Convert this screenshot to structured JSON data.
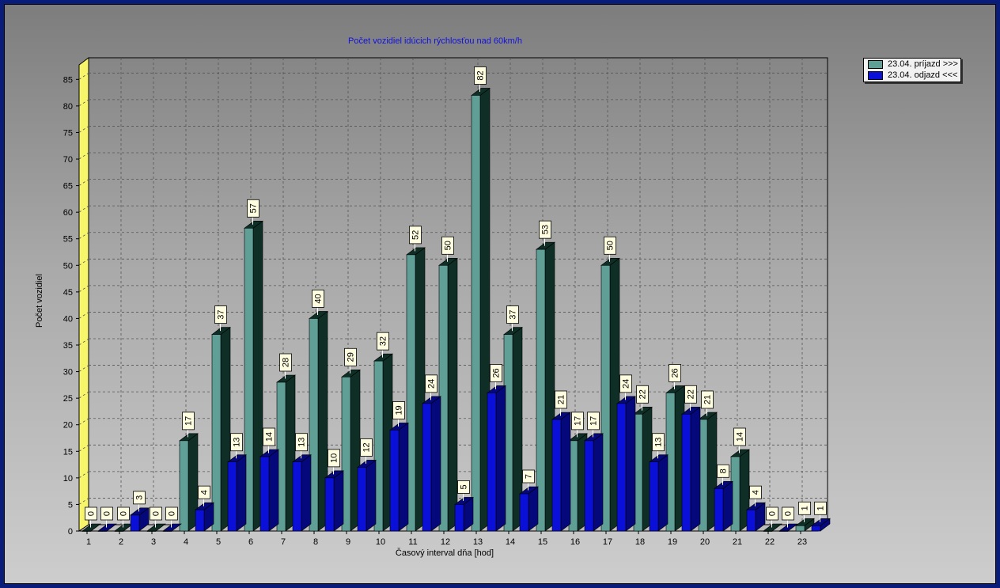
{
  "chart_data": {
    "type": "bar",
    "title": "Počet vozidiel idúcich rýchlosťou nad 60km/h",
    "xlabel": "Časový interval dňa [hod]",
    "ylabel": "Počet vozidiel",
    "ylim": [
      0,
      88
    ],
    "yticks": [
      0,
      5,
      10,
      15,
      20,
      25,
      30,
      35,
      40,
      45,
      50,
      55,
      60,
      65,
      70,
      75,
      80,
      85
    ],
    "grid": true,
    "legend_position": "top-right",
    "categories": [
      "1",
      "2",
      "3",
      "4",
      "5",
      "6",
      "7",
      "8",
      "9",
      "10",
      "11",
      "12",
      "13",
      "14",
      "15",
      "16",
      "17",
      "18",
      "19",
      "20",
      "21",
      "22",
      "23"
    ],
    "series": [
      {
        "name": "23.04.  príjazd >>>",
        "color": "#5f9f96",
        "dark": "#0e2e26",
        "values": [
          0,
          0,
          0,
          17,
          37,
          57,
          28,
          40,
          29,
          32,
          52,
          50,
          82,
          37,
          53,
          17,
          50,
          22,
          26,
          21,
          14,
          0,
          1
        ]
      },
      {
        "name": "23.04.  odjazd <<<",
        "color": "#0a10d8",
        "dark": "#05087a",
        "values": [
          0,
          3,
          0,
          4,
          13,
          14,
          13,
          10,
          12,
          19,
          24,
          5,
          26,
          7,
          21,
          17,
          24,
          13,
          22,
          8,
          4,
          0,
          1
        ]
      }
    ]
  }
}
